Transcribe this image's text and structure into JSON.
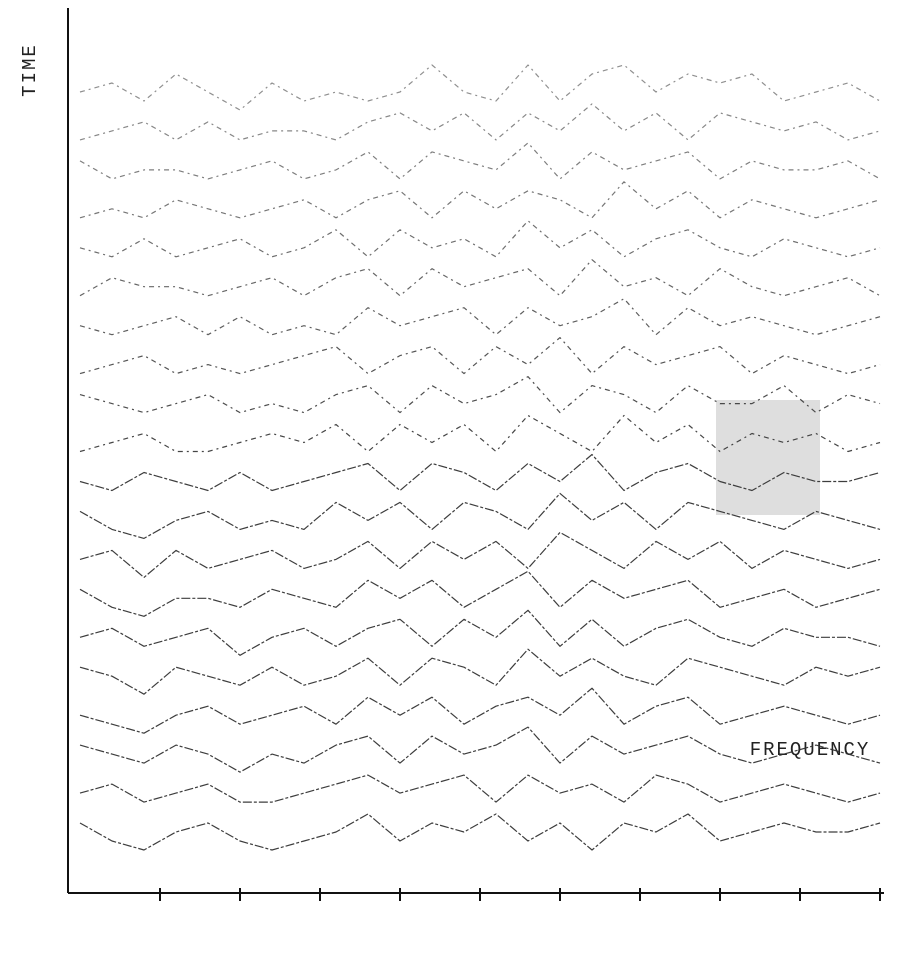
{
  "chart_data": {
    "type": "waterfall",
    "x_label": "FREQUENCY",
    "y_label": "TIME",
    "color": "#333333",
    "xlim": [
      -0.15,
      10
    ],
    "xticks": [
      1,
      2,
      3,
      4,
      5,
      6,
      7,
      8,
      9,
      10
    ],
    "x": [
      0,
      0.4,
      0.8,
      1.2,
      1.6,
      2,
      2.4,
      2.8,
      3.2,
      3.6,
      4,
      4.4,
      4.8,
      5.2,
      5.6,
      6,
      6.4,
      6.8,
      7.2,
      7.6,
      8,
      8.4,
      8.8,
      9.2,
      9.6,
      10
    ],
    "series": [
      {
        "values": [
          2,
          3,
          1,
          4,
          2,
          0,
          3,
          1,
          2,
          1,
          2,
          5,
          2,
          1,
          5,
          1,
          4,
          5,
          2,
          4,
          3,
          4,
          1,
          2,
          3,
          1
        ]
      },
      {
        "values": [
          1,
          2,
          3,
          1,
          3,
          1,
          2,
          2,
          1,
          3,
          4,
          2,
          4,
          1,
          4,
          2,
          5,
          2,
          4,
          1,
          4,
          3,
          2,
          3,
          1,
          2
        ]
      },
      {
        "values": [
          3,
          1,
          2,
          2,
          1,
          2,
          3,
          1,
          2,
          4,
          1,
          4,
          3,
          2,
          5,
          1,
          4,
          2,
          3,
          4,
          1,
          3,
          2,
          2,
          3,
          1
        ]
      },
      {
        "values": [
          1,
          2,
          1,
          3,
          2,
          1,
          2,
          3,
          1,
          3,
          4,
          1,
          4,
          2,
          4,
          3,
          1,
          5,
          2,
          4,
          1,
          3,
          2,
          1,
          2,
          3
        ]
      },
      {
        "values": [
          2,
          1,
          3,
          1,
          2,
          3,
          1,
          2,
          4,
          1,
          4,
          2,
          3,
          1,
          5,
          2,
          4,
          1,
          3,
          4,
          2,
          1,
          3,
          2,
          1,
          2
        ]
      },
      {
        "values": [
          1,
          3,
          2,
          2,
          1,
          2,
          3,
          1,
          3,
          4,
          1,
          4,
          2,
          3,
          4,
          1,
          5,
          2,
          3,
          1,
          4,
          2,
          1,
          2,
          3,
          1
        ]
      },
      {
        "values": [
          2,
          1,
          2,
          3,
          1,
          3,
          1,
          2,
          1,
          4,
          2,
          3,
          4,
          1,
          4,
          2,
          3,
          5,
          1,
          4,
          2,
          3,
          2,
          1,
          2,
          3
        ]
      },
      {
        "values": [
          1,
          2,
          3,
          1,
          2,
          1,
          2,
          3,
          4,
          1,
          3,
          4,
          1,
          4,
          2,
          5,
          1,
          4,
          2,
          3,
          4,
          1,
          3,
          2,
          1,
          2
        ]
      },
      {
        "values": [
          3,
          2,
          1,
          2,
          3,
          1,
          2,
          1,
          3,
          4,
          1,
          4,
          2,
          3,
          5,
          1,
          4,
          3,
          1,
          4,
          2,
          2,
          4,
          1,
          3,
          2
        ]
      },
      {
        "values": [
          1,
          2,
          3,
          1,
          1,
          2,
          3,
          2,
          4,
          1,
          4,
          2,
          4,
          1,
          5,
          3,
          1,
          5,
          2,
          4,
          1,
          3,
          2,
          3,
          1,
          2
        ]
      },
      {
        "values": [
          2,
          1,
          3,
          2,
          1,
          3,
          1,
          2,
          3,
          4,
          1,
          4,
          3,
          1,
          4,
          2,
          5,
          1,
          3,
          4,
          2,
          1,
          3,
          2,
          2,
          3
        ]
      },
      {
        "values": [
          3,
          1,
          0,
          2,
          3,
          1,
          2,
          1,
          4,
          2,
          4,
          1,
          4,
          3,
          1,
          5,
          2,
          4,
          1,
          4,
          3,
          2,
          1,
          3,
          2,
          1
        ]
      },
      {
        "values": [
          2,
          3,
          0,
          3,
          1,
          2,
          3,
          1,
          2,
          4,
          1,
          4,
          2,
          4,
          1,
          5,
          3,
          1,
          4,
          2,
          4,
          1,
          3,
          2,
          1,
          2
        ]
      },
      {
        "values": [
          3,
          1,
          0,
          2,
          2,
          1,
          3,
          2,
          1,
          4,
          2,
          4,
          1,
          3,
          5,
          1,
          4,
          2,
          3,
          4,
          1,
          2,
          3,
          1,
          2,
          3
        ]
      },
      {
        "values": [
          2,
          3,
          1,
          2,
          3,
          0,
          2,
          3,
          1,
          3,
          4,
          1,
          4,
          2,
          5,
          1,
          4,
          1,
          3,
          4,
          2,
          1,
          3,
          2,
          2,
          1
        ]
      },
      {
        "values": [
          3,
          2,
          0,
          3,
          2,
          1,
          3,
          1,
          2,
          4,
          1,
          4,
          3,
          1,
          5,
          2,
          4,
          2,
          1,
          4,
          3,
          2,
          1,
          3,
          2,
          3
        ]
      },
      {
        "values": [
          2,
          1,
          0,
          2,
          3,
          1,
          2,
          3,
          1,
          4,
          2,
          4,
          1,
          3,
          4,
          2,
          5,
          1,
          3,
          4,
          1,
          2,
          3,
          2,
          1,
          2
        ]
      },
      {
        "values": [
          3,
          2,
          1,
          3,
          2,
          0,
          2,
          1,
          3,
          4,
          1,
          4,
          2,
          3,
          5,
          1,
          4,
          2,
          3,
          4,
          2,
          1,
          2,
          3,
          2,
          1
        ]
      },
      {
        "values": [
          2,
          3,
          1,
          2,
          3,
          1,
          1,
          2,
          3,
          4,
          2,
          3,
          4,
          1,
          4,
          2,
          3,
          1,
          4,
          3,
          1,
          2,
          3,
          2,
          1,
          2
        ]
      },
      {
        "values": [
          3,
          1,
          0,
          2,
          3,
          1,
          0,
          1,
          2,
          4,
          1,
          3,
          2,
          4,
          1,
          3,
          0,
          3,
          2,
          4,
          1,
          2,
          3,
          2,
          2,
          3
        ]
      }
    ]
  }
}
